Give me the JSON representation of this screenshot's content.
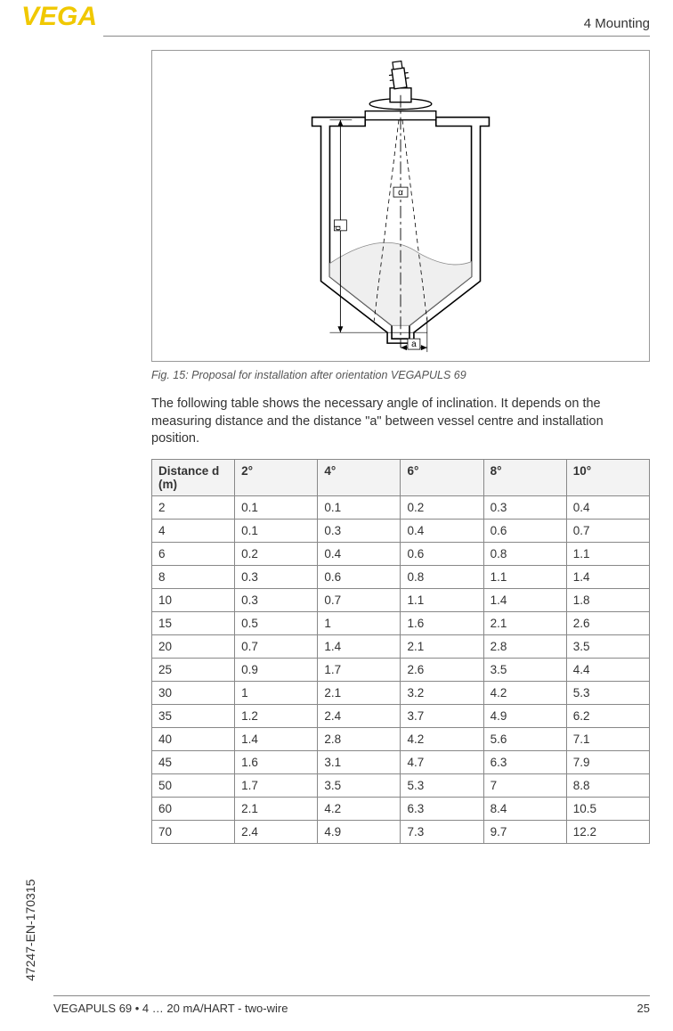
{
  "header": {
    "logo_text": "VEGA",
    "logo_color": "#f0c800",
    "section": "4 Mounting"
  },
  "figure": {
    "label_d": "d",
    "label_a": "a",
    "label_alpha": "α",
    "stroke": "#000000",
    "stroke_width": 1.4,
    "fill_bg": "#ffffff",
    "material_fill": "#f0f0f0"
  },
  "caption": "Fig. 15: Proposal for installation after orientation VEGAPULS 69",
  "intro": "The following table shows the necessary angle of inclination. It depends on the measuring distance and the distance \"a\" between vessel centre and installation position.",
  "table": {
    "header_bg": "#f3f3f3",
    "border_color": "#888888",
    "columns": [
      "Distance d (m)",
      "2°",
      "4°",
      "6°",
      "8°",
      "10°"
    ],
    "rows": [
      [
        "2",
        "0.1",
        "0.1",
        "0.2",
        "0.3",
        "0.4"
      ],
      [
        "4",
        "0.1",
        "0.3",
        "0.4",
        "0.6",
        "0.7"
      ],
      [
        "6",
        "0.2",
        "0.4",
        "0.6",
        "0.8",
        "1.1"
      ],
      [
        "8",
        "0.3",
        "0.6",
        "0.8",
        "1.1",
        "1.4"
      ],
      [
        "10",
        "0.3",
        "0.7",
        "1.1",
        "1.4",
        "1.8"
      ],
      [
        "15",
        "0.5",
        "1",
        "1.6",
        "2.1",
        "2.6"
      ],
      [
        "20",
        "0.7",
        "1.4",
        "2.1",
        "2.8",
        "3.5"
      ],
      [
        "25",
        "0.9",
        "1.7",
        "2.6",
        "3.5",
        "4.4"
      ],
      [
        "30",
        "1",
        "2.1",
        "3.2",
        "4.2",
        "5.3"
      ],
      [
        "35",
        "1.2",
        "2.4",
        "3.7",
        "4.9",
        "6.2"
      ],
      [
        "40",
        "1.4",
        "2.8",
        "4.2",
        "5.6",
        "7.1"
      ],
      [
        "45",
        "1.6",
        "3.1",
        "4.7",
        "6.3",
        "7.9"
      ],
      [
        "50",
        "1.7",
        "3.5",
        "5.3",
        "7",
        "8.8"
      ],
      [
        "60",
        "2.1",
        "4.2",
        "6.3",
        "8.4",
        "10.5"
      ],
      [
        "70",
        "2.4",
        "4.9",
        "7.3",
        "9.7",
        "12.2"
      ]
    ]
  },
  "side_label": "47247-EN-170315",
  "footer": {
    "product": "VEGAPULS 69 • 4 … 20 mA/HART - two-wire",
    "page": "25"
  }
}
